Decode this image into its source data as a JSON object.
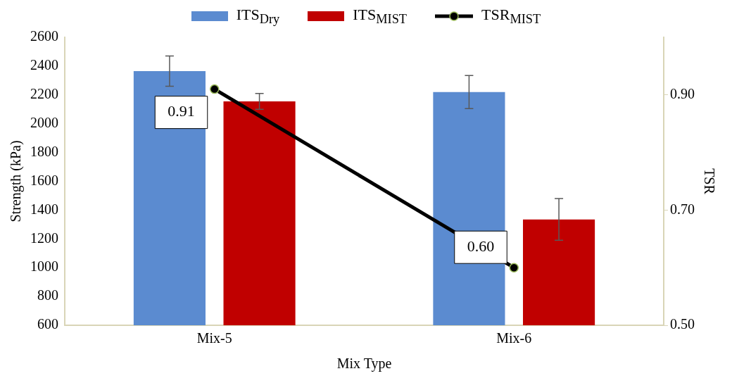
{
  "chart_data": {
    "type": "bar",
    "xlabel": "Mix Type",
    "ylabel": "Strength (kPa)",
    "y2label": "TSR",
    "categories": [
      "Mix-5",
      "Mix-6"
    ],
    "series": [
      {
        "name": "ITS$_{Dry}$",
        "color": "#5b8bd0",
        "values": [
          2365,
          2220
        ],
        "errors": [
          105,
          115
        ]
      },
      {
        "name": "ITS$_{MIST}$",
        "color": "#c00000",
        "values": [
          2155,
          1335
        ],
        "errors": [
          55,
          145
        ]
      },
      {
        "name": "TSR$_{MIST}$",
        "type": "line",
        "axis": "y2",
        "color": "#000000",
        "values": [
          0.91,
          0.6
        ],
        "value_labels": [
          "0.91",
          "0.60"
        ],
        "marker": "circle",
        "line_style": "solid"
      }
    ],
    "ylim": [
      600,
      2600
    ],
    "yticks": [
      600,
      800,
      1000,
      1200,
      1400,
      1600,
      1800,
      2000,
      2200,
      2400,
      2600
    ],
    "y2lim": [
      0.5,
      1.0
    ],
    "y2ticks": [
      {
        "value": 0.5,
        "label": "0.50"
      },
      {
        "value": 0.7,
        "label": "0.70"
      },
      {
        "value": 0.9,
        "label": "0.90"
      }
    ],
    "grid": false,
    "legend": "top"
  }
}
